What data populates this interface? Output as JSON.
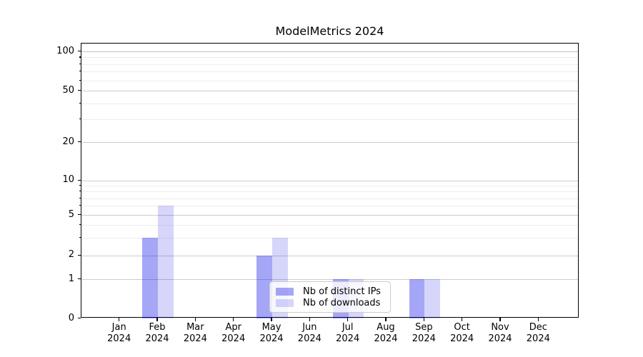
{
  "chart_data": {
    "type": "bar",
    "title": "ModelMetrics 2024",
    "x_axis": {
      "months": [
        "Jan",
        "Feb",
        "Mar",
        "Apr",
        "May",
        "Jun",
        "Jul",
        "Aug",
        "Sep",
        "Oct",
        "Nov",
        "Dec"
      ],
      "year_line": "2024"
    },
    "y_axis": {
      "scale": "asinh-like (log spacing above 1, linear 0-1)",
      "major_ticks": [
        0,
        1,
        2,
        5,
        10,
        20,
        50,
        100
      ],
      "minor_gridline_values": [
        3,
        4,
        6,
        7,
        8,
        9,
        30,
        40,
        60,
        70,
        80,
        90
      ],
      "ylim": [
        0,
        115
      ],
      "grid": true
    },
    "series": [
      {
        "name": "Nb of distinct IPs",
        "color": "#0000e6",
        "alpha": 0.35,
        "values": [
          0,
          3,
          0,
          0,
          2,
          0,
          1,
          0,
          1,
          0,
          0,
          0
        ]
      },
      {
        "name": "Nb of downloads",
        "color": "#0000e6",
        "alpha": 0.16,
        "values": [
          0,
          6,
          0,
          0,
          3,
          0,
          1,
          0,
          1,
          0,
          0,
          0
        ]
      }
    ],
    "legend": {
      "position": "lower center, inside axes",
      "items": [
        "Nb of distinct IPs",
        "Nb of downloads"
      ]
    }
  }
}
